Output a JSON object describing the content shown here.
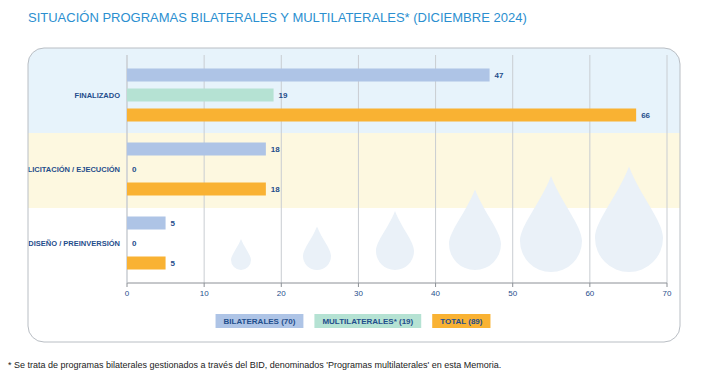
{
  "chart_data": {
    "type": "bar",
    "orientation": "horizontal",
    "title": "SITUACIÓN PROGRAMAS BILATERALES Y MULTILATERALES* (DICIEMBRE 2024)",
    "categories": [
      "FINALIZADO",
      "LICITACIÓN / EJECUCIÓN",
      "DISEÑO / PREINVERSIÓN"
    ],
    "series": [
      {
        "name": "BILATERALES (70)",
        "color": "#aec4e6",
        "values": [
          47,
          18,
          5
        ]
      },
      {
        "name": "MULTILATERALES* (19)",
        "color": "#b5e2d3",
        "values": [
          19,
          0,
          0
        ]
      },
      {
        "name": "TOTAL (89)",
        "color": "#f9b233",
        "values": [
          66,
          18,
          5
        ]
      }
    ],
    "xlim": [
      0,
      70
    ],
    "xticks": [
      0,
      10,
      20,
      30,
      40,
      50,
      60,
      70
    ],
    "grid": true,
    "data_labels": true,
    "legend": "bottom",
    "footnote": "* Se trata de programas bilaterales gestionados a través del BID, denominados 'Programas multilaterales' en esta Memoria."
  }
}
